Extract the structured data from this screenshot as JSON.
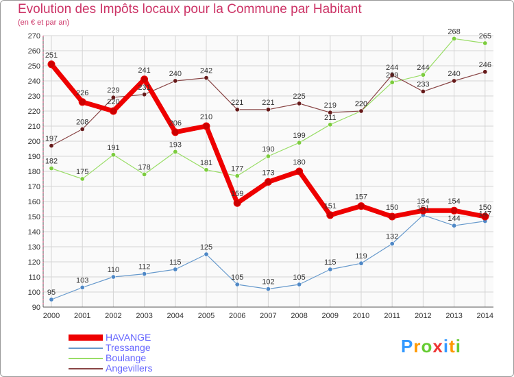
{
  "chart_data": {
    "type": "line",
    "title": "Evolution des Impôts locaux pour la Commune par Habitant",
    "subtitle": "(en € et par an)",
    "x": [
      "2000",
      "2001",
      "2002",
      "2003",
      "2004",
      "2005",
      "2006",
      "2007",
      "2008",
      "2009",
      "2010",
      "2011",
      "2012",
      "2013",
      "2014"
    ],
    "ylim": [
      90,
      270
    ],
    "yticks": [
      90,
      100,
      110,
      120,
      130,
      140,
      150,
      160,
      170,
      180,
      190,
      200,
      210,
      220,
      230,
      240,
      250,
      260,
      270
    ],
    "grid": true,
    "series": [
      {
        "name": "HAVANGE",
        "color": "#ee0000",
        "values": [
          251,
          226,
          220,
          241,
          206,
          210,
          159,
          173,
          180,
          151,
          157,
          150,
          154,
          154,
          150
        ],
        "labels": [
          "251",
          "226",
          "220",
          "241",
          "206",
          "210",
          "159",
          "173",
          "180",
          "151",
          "157",
          "150",
          "154",
          "154",
          "150"
        ]
      },
      {
        "name": "Tressange",
        "color": "#6699cc",
        "values": [
          95,
          103,
          110,
          112,
          115,
          125,
          105,
          102,
          105,
          115,
          119,
          132,
          151,
          144,
          147
        ],
        "labels": [
          "95",
          "103",
          "110",
          "112",
          "115",
          "125",
          "105",
          "102",
          "105",
          "115",
          "119",
          "132",
          "151",
          "144",
          "147"
        ]
      },
      {
        "name": "Boulange",
        "color": "#99dd66",
        "values": [
          182,
          175,
          191,
          178,
          193,
          181,
          177,
          190,
          199,
          211,
          220,
          239,
          244,
          268,
          265
        ],
        "labels": [
          "182",
          "175",
          "191",
          "178",
          "193",
          "181",
          "177",
          "190",
          "199",
          "211",
          "220",
          "239",
          "244",
          "268",
          "265"
        ]
      },
      {
        "name": "Angevillers",
        "color": "#884444",
        "values": [
          197,
          208,
          229,
          231,
          240,
          242,
          221,
          221,
          225,
          219,
          220,
          244,
          233,
          240,
          246
        ],
        "labels": [
          "197",
          "208",
          "229",
          "231",
          "240",
          "242",
          "221",
          "221",
          "225",
          "219",
          "220",
          "244",
          "233",
          "240",
          "246"
        ]
      }
    ]
  },
  "brand": {
    "text": "Proxiti",
    "letters": [
      "P",
      "r",
      "o",
      "x",
      "i",
      "t",
      "i"
    ],
    "colors": [
      "#3399ff",
      "#ff9900",
      "#66cc33",
      "#ee3333",
      "#3399ff",
      "#ff9900",
      "#66cc33"
    ]
  }
}
